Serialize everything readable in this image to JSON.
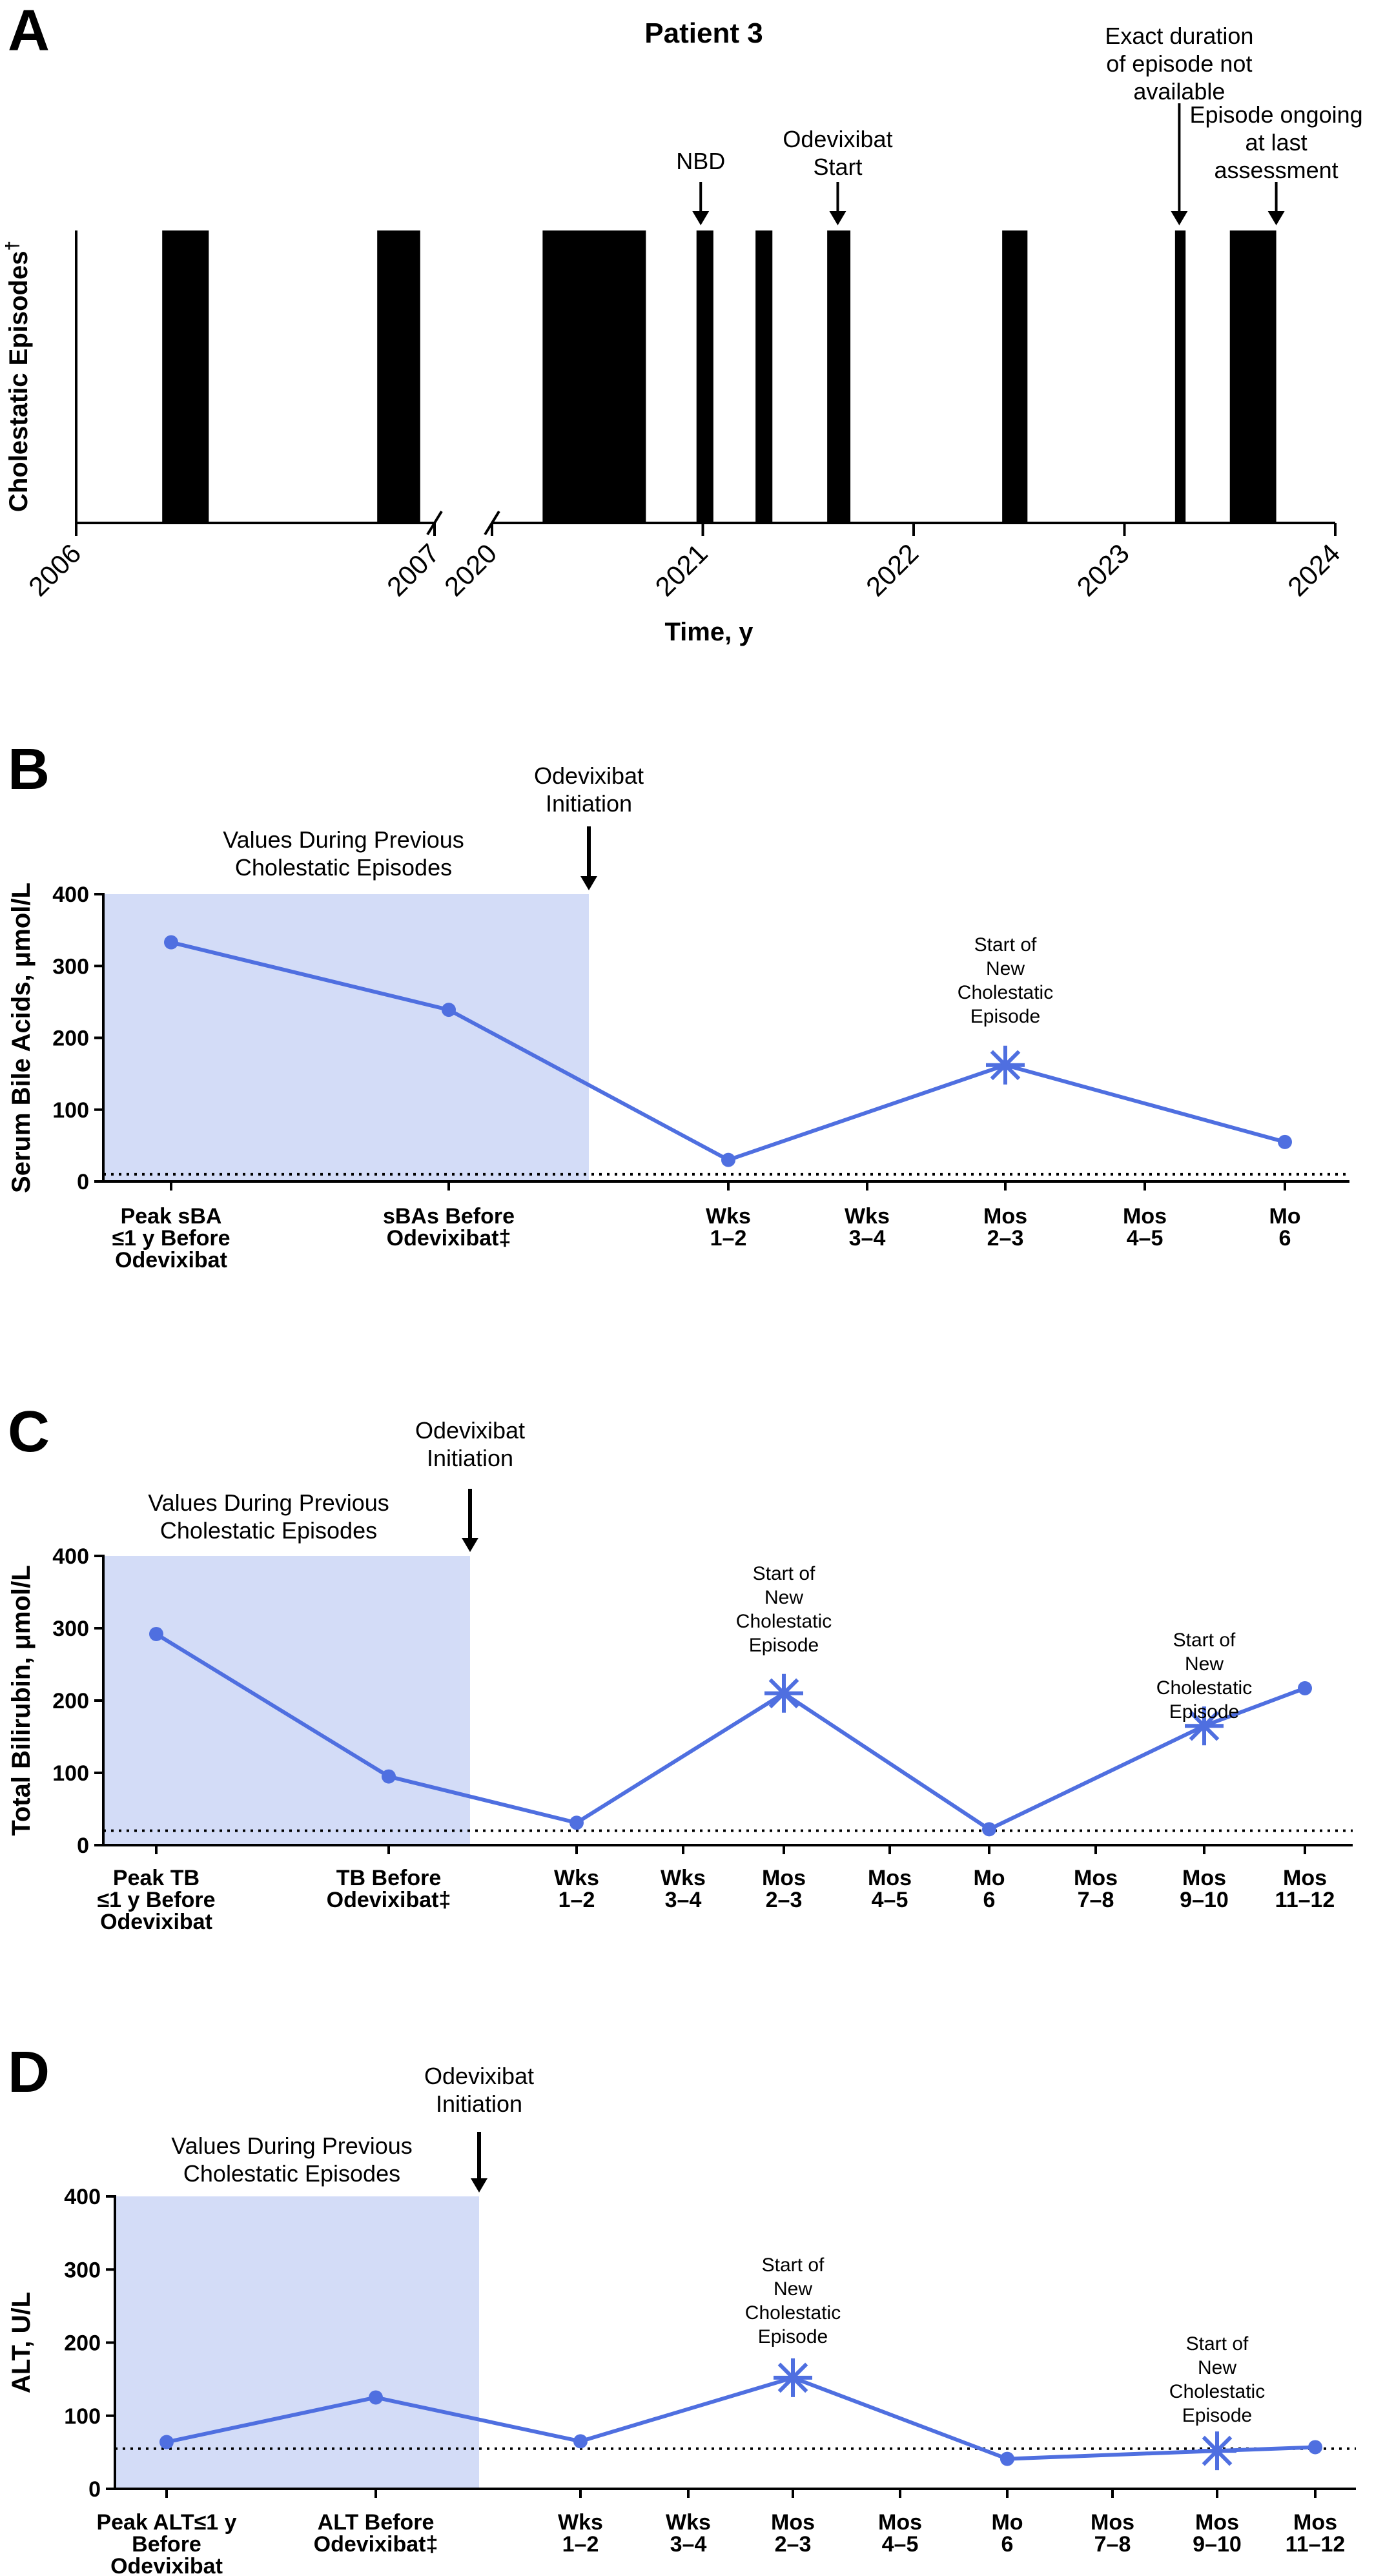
{
  "colors": {
    "line": "#4f6fe0",
    "shade": "#d3dcf7",
    "bar": "#000000"
  },
  "chart_data": [
    {
      "panel": "A",
      "type": "bar",
      "title": "Patient 3",
      "xlabel": "Time, y",
      "ylabel": "Cholestatic Episodes",
      "ylabel_mark": "†",
      "axis_broken": true,
      "segments": [
        {
          "x_range": [
            2006,
            2007
          ],
          "ticks": [
            {
              "value": 2006,
              "label": "2006"
            },
            {
              "value": 2007,
              "label": "2007"
            }
          ]
        },
        {
          "x_range": [
            2020,
            2024
          ],
          "ticks": [
            {
              "value": 2020,
              "label": "2020"
            },
            {
              "value": 2021,
              "label": "2021"
            },
            {
              "value": 2022,
              "label": "2022"
            },
            {
              "value": 2023,
              "label": "2023"
            },
            {
              "value": 2024,
              "label": "2024"
            }
          ]
        }
      ],
      "episodes": [
        {
          "start": 2006.24,
          "end": 2006.37
        },
        {
          "start": 2006.84,
          "end": 2006.96
        },
        {
          "start": 2020.24,
          "end": 2020.73
        },
        {
          "start": 2020.97,
          "end": 2021.05
        },
        {
          "start": 2021.25,
          "end": 2021.33
        },
        {
          "start": 2021.59,
          "end": 2021.7
        },
        {
          "start": 2022.42,
          "end": 2022.54
        },
        {
          "start": 2023.24,
          "end": 2023.29
        },
        {
          "start": 2023.5,
          "end": 2023.72
        }
      ],
      "annotations": [
        {
          "lines": [
            "NBD"
          ],
          "x": 2020.99
        },
        {
          "lines": [
            "Odevixibat",
            "Start"
          ],
          "x": 2021.64
        },
        {
          "lines": [
            "Exact duration",
            "of episode not",
            "available"
          ],
          "x": 2023.26
        },
        {
          "lines": [
            "Episode ongoing",
            "at last",
            "assessment"
          ],
          "x": 2023.72
        }
      ]
    },
    {
      "panel": "B",
      "type": "line",
      "ylabel": "Serum Bile Acids, μmol/L",
      "ylim": [
        0,
        400
      ],
      "yticks": [
        0,
        100,
        200,
        300,
        400
      ],
      "reference_line": 10,
      "categories": [
        [
          "Peak sBA",
          "≤1 y Before",
          "Odevixibat"
        ],
        [
          "sBAs Before",
          "Odevixibat‡"
        ],
        [
          "Wks",
          "1–2"
        ],
        [
          "Wks",
          "3–4"
        ],
        [
          "Mos",
          "2–3"
        ],
        [
          "Mos",
          "4–5"
        ],
        [
          "Mo",
          "6"
        ]
      ],
      "values": [
        333,
        239,
        30,
        null,
        162,
        null,
        55
      ],
      "new_episode_markers": [
        4
      ],
      "shaded_region": {
        "label": [
          "Values During Previous",
          "Cholestatic Episodes"
        ],
        "through_category": 1
      },
      "initiation_label": [
        "Odevixibat",
        "Initiation"
      ],
      "episode_label": [
        "Start of",
        "New",
        "Cholestatic",
        "Episode"
      ]
    },
    {
      "panel": "C",
      "type": "line",
      "ylabel": "Total Bilirubin, μmol/L",
      "ylim": [
        0,
        400
      ],
      "yticks": [
        0,
        100,
        200,
        300,
        400
      ],
      "reference_line": 20,
      "categories": [
        [
          "Peak TB",
          "≤1 y Before",
          "Odevixibat"
        ],
        [
          "TB Before",
          "Odevixibat‡"
        ],
        [
          "Wks",
          "1–2"
        ],
        [
          "Wks",
          "3–4"
        ],
        [
          "Mos",
          "2–3"
        ],
        [
          "Mos",
          "4–5"
        ],
        [
          "Mo",
          "6"
        ],
        [
          "Mos",
          "7–8"
        ],
        [
          "Mos",
          "9–10"
        ],
        [
          "Mos",
          "11–12"
        ]
      ],
      "values": [
        292,
        95,
        31,
        null,
        210,
        null,
        22,
        null,
        165,
        217
      ],
      "new_episode_markers": [
        4,
        8
      ],
      "shaded_region": {
        "label": [
          "Values During Previous",
          "Cholestatic Episodes"
        ],
        "through_category": 1
      },
      "initiation_label": [
        "Odevixibat",
        "Initiation"
      ],
      "episode_label": [
        "Start of",
        "New",
        "Cholestatic",
        "Episode"
      ]
    },
    {
      "panel": "D",
      "type": "line",
      "ylabel": "ALT, U/L",
      "ylim": [
        0,
        400
      ],
      "yticks": [
        0,
        100,
        200,
        300,
        400
      ],
      "reference_line": 55,
      "categories": [
        [
          "Peak ALT≤1 y",
          "Before",
          "Odevixibat"
        ],
        [
          "ALT Before",
          "Odevixibat‡"
        ],
        [
          "Wks",
          "1–2"
        ],
        [
          "Wks",
          "3–4"
        ],
        [
          "Mos",
          "2–3"
        ],
        [
          "Mos",
          "4–5"
        ],
        [
          "Mo",
          "6"
        ],
        [
          "Mos",
          "7–8"
        ],
        [
          "Mos",
          "9–10"
        ],
        [
          "Mos",
          "11–12"
        ]
      ],
      "values": [
        64,
        125,
        65,
        null,
        152,
        null,
        41,
        null,
        52,
        57
      ],
      "new_episode_markers": [
        4,
        8
      ],
      "shaded_region": {
        "label": [
          "Values During Previous",
          "Cholestatic Episodes"
        ],
        "through_category": 1
      },
      "initiation_label": [
        "Odevixibat",
        "Initiation"
      ],
      "episode_label": [
        "Start of",
        "New",
        "Cholestatic",
        "Episode"
      ]
    }
  ]
}
